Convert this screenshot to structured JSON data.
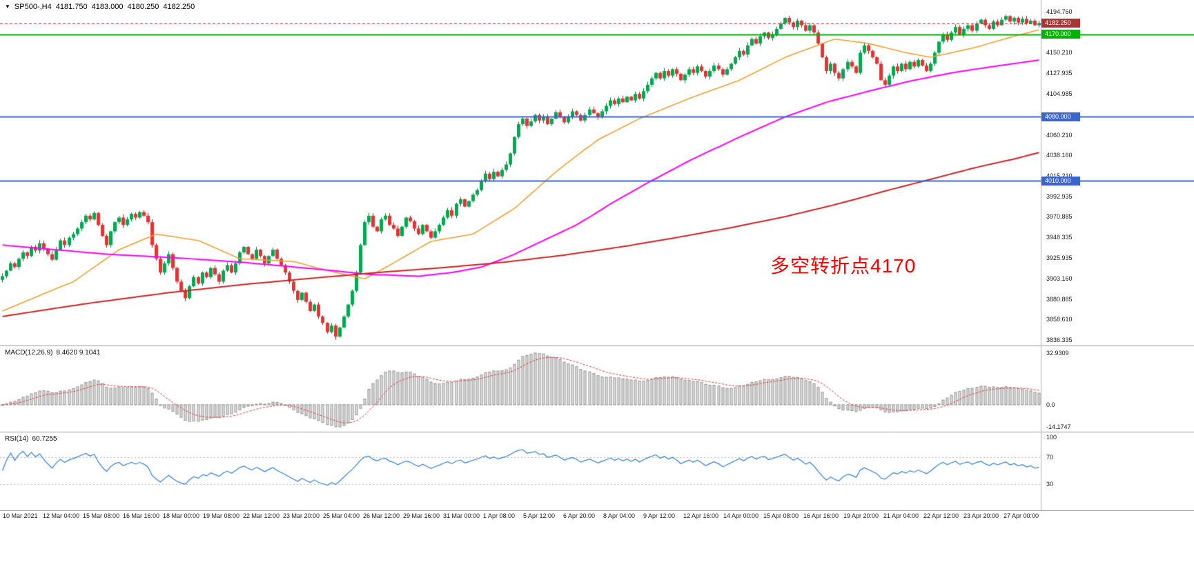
{
  "header": {
    "marker": "▼",
    "symbol": "SP500-,H4",
    "open": "4181.750",
    "high": "4183.000",
    "low": "4180.250",
    "close": "4182.250"
  },
  "chart_data": [
    {
      "type": "candlestick",
      "title": "SP500-,H4",
      "timeframe": "H4",
      "annotation": {
        "text": "多空转折点4170",
        "color": "#ff0000"
      },
      "up_color": "#00a94f",
      "up_border": "#00773a",
      "down_color": "#e23434",
      "down_border": "#9c1f1f",
      "last_price": {
        "label": "4182.250",
        "value": 4182.25,
        "color": "#a83535"
      },
      "hlines": [
        {
          "value": 4170.0,
          "label": "4170.000",
          "color": "#00b300",
          "width": 2
        },
        {
          "value": 4080.0,
          "label": "4080.000",
          "color": "#3a66cc",
          "width": 2
        },
        {
          "value": 4010.0,
          "label": "4010.000",
          "color": "#3a66cc",
          "width": 2
        }
      ],
      "y_ticks": [
        "4194.760",
        "4150.210",
        "4127.935",
        "4104.985",
        "4060.210",
        "4038.160",
        "4015.210",
        "3992.935",
        "3970.885",
        "3948.335",
        "3925.935",
        "3903.160",
        "3880.885",
        "3858.610",
        "3836.335"
      ],
      "x_labels": [
        "10 Mar 2021",
        "12 Mar 04:00",
        "15 Mar 08:00",
        "16 Mar 16:00",
        "18 Mar 00:00",
        "19 Mar 08:00",
        "22 Mar 12:00",
        "23 Mar 20:00",
        "25 Mar 04:00",
        "26 Mar 12:00",
        "29 Mar 16:00",
        "31 Mar 00:00",
        "1 Apr 08:00",
        "5 Apr 12:00",
        "6 Apr 20:00",
        "8 Apr 04:00",
        "9 Apr 12:00",
        "12 Apr 16:00",
        "14 Apr 00:00",
        "15 Apr 08:00",
        "16 Apr 16:00",
        "19 Apr 20:00",
        "21 Apr 04:00",
        "22 Apr 12:00",
        "23 Apr 20:00",
        "27 Apr 00:00"
      ],
      "closes": [
        3906,
        3912,
        3920,
        3916,
        3925,
        3932,
        3928,
        3938,
        3934,
        3942,
        3936,
        3930,
        3924,
        3935,
        3945,
        3940,
        3948,
        3952,
        3958,
        3965,
        3972,
        3968,
        3975,
        3962,
        3950,
        3940,
        3955,
        3965,
        3970,
        3962,
        3968,
        3974,
        3970,
        3976,
        3972,
        3965,
        3940,
        3925,
        3910,
        3920,
        3930,
        3915,
        3900,
        3890,
        3882,
        3895,
        3905,
        3898,
        3910,
        3905,
        3915,
        3908,
        3900,
        3912,
        3918,
        3910,
        3920,
        3932,
        3938,
        3930,
        3925,
        3935,
        3928,
        3920,
        3928,
        3935,
        3925,
        3918,
        3910,
        3900,
        3890,
        3880,
        3888,
        3878,
        3868,
        3875,
        3862,
        3855,
        3845,
        3852,
        3840,
        3850,
        3862,
        3875,
        3890,
        3910,
        3940,
        3965,
        3972,
        3960,
        3955,
        3968,
        3972,
        3962,
        3958,
        3950,
        3960,
        3970,
        3966,
        3958,
        3952,
        3962,
        3955,
        3948,
        3955,
        3962,
        3970,
        3978,
        3972,
        3985,
        3990,
        3982,
        3988,
        3995,
        4000,
        4010,
        4018,
        4012,
        4020,
        4015,
        4022,
        4028,
        4040,
        4058,
        4072,
        4078,
        4070,
        4075,
        4082,
        4076,
        4080,
        4072,
        4078,
        4085,
        4080,
        4074,
        4080,
        4086,
        4082,
        4076,
        4082,
        4088,
        4084,
        4080,
        4086,
        4092,
        4098,
        4094,
        4100,
        4096,
        4102,
        4098,
        4105,
        4100,
        4108,
        4115,
        4122,
        4128,
        4122,
        4130,
        4125,
        4132,
        4127,
        4120,
        4126,
        4132,
        4128,
        4135,
        4130,
        4124,
        4130,
        4136,
        4132,
        4126,
        4132,
        4138,
        4145,
        4152,
        4148,
        4158,
        4165,
        4160,
        4168,
        4172,
        4166,
        4170,
        4176,
        4182,
        4188,
        4183,
        4178,
        4185,
        4180,
        4174,
        4180,
        4172,
        4160,
        4145,
        4130,
        4138,
        4128,
        4122,
        4132,
        4140,
        4135,
        4128,
        4150,
        4158,
        4152,
        4145,
        4138,
        4120,
        4115,
        4125,
        4135,
        4130,
        4138,
        4132,
        4140,
        4135,
        4142,
        4136,
        4130,
        4138,
        4150,
        4162,
        4170,
        4164,
        4172,
        4178,
        4170,
        4176,
        4180,
        4174,
        4182,
        4186,
        4180,
        4176,
        4184,
        4180,
        4186,
        4190,
        4184,
        4188,
        4183,
        4187,
        4182,
        4185,
        4180,
        4182.25
      ],
      "moving_averages": [
        {
          "name": "ma-fast",
          "color": "#efa134",
          "width": 1.6,
          "points": [
            [
              0,
              3868
            ],
            [
              17,
              3900
            ],
            [
              28,
              3935
            ],
            [
              37,
              3952
            ],
            [
              47,
              3945
            ],
            [
              57,
              3925
            ],
            [
              70,
              3922
            ],
            [
              80,
              3910
            ],
            [
              87,
              3903
            ],
            [
              93,
              3918
            ],
            [
              103,
              3944
            ],
            [
              113,
              3952
            ],
            [
              123,
              3980
            ],
            [
              133,
              4020
            ],
            [
              143,
              4055
            ],
            [
              153,
              4078
            ],
            [
              165,
              4100
            ],
            [
              177,
              4120
            ],
            [
              188,
              4145
            ],
            [
              200,
              4165
            ],
            [
              208,
              4160
            ],
            [
              217,
              4150
            ],
            [
              223,
              4145
            ],
            [
              233,
              4155
            ],
            [
              243,
              4168
            ],
            [
              249,
              4175
            ]
          ]
        },
        {
          "name": "ma-mid",
          "color": "#ff00ff",
          "width": 2,
          "points": [
            [
              0,
              3940
            ],
            [
              25,
              3930
            ],
            [
              42,
              3926
            ],
            [
              58,
              3921
            ],
            [
              75,
              3914
            ],
            [
              88,
              3908
            ],
            [
              100,
              3906
            ],
            [
              108,
              3910
            ],
            [
              115,
              3916
            ],
            [
              122,
              3928
            ],
            [
              130,
              3945
            ],
            [
              138,
              3962
            ],
            [
              146,
              3985
            ],
            [
              155,
              4008
            ],
            [
              165,
              4032
            ],
            [
              177,
              4058
            ],
            [
              188,
              4080
            ],
            [
              198,
              4096
            ],
            [
              208,
              4108
            ],
            [
              218,
              4119
            ],
            [
              228,
              4128
            ],
            [
              238,
              4135
            ],
            [
              249,
              4142
            ]
          ]
        },
        {
          "name": "ma-slow",
          "color": "#cc2222",
          "width": 2,
          "points": [
            [
              0,
              3862
            ],
            [
              20,
              3876
            ],
            [
              40,
              3888
            ],
            [
              58,
              3897
            ],
            [
              75,
              3904
            ],
            [
              90,
              3910
            ],
            [
              105,
              3915
            ],
            [
              120,
              3921
            ],
            [
              135,
              3929
            ],
            [
              150,
              3939
            ],
            [
              163,
              3949
            ],
            [
              175,
              3959
            ],
            [
              188,
              3971
            ],
            [
              200,
              3984
            ],
            [
              212,
              3999
            ],
            [
              224,
              4013
            ],
            [
              235,
              4026
            ],
            [
              243,
              4034
            ],
            [
              249,
              4041
            ]
          ]
        }
      ]
    },
    {
      "type": "macd-histogram",
      "label": "MACD(12,26,9)",
      "values_label": "8.4620 9.1041",
      "params": [
        12,
        26,
        9
      ],
      "y_ticks": [
        "32.9309",
        "0.0",
        "-14.1747"
      ],
      "histogram_fill": "#e2e2e2",
      "histogram_border": "#8e8e8e",
      "signal_color": "#e03030"
    },
    {
      "type": "rsi-line",
      "label": "RSI(14)",
      "value_label": "60.7255",
      "period": 14,
      "levels": [
        70,
        30
      ],
      "y_ticks": [
        "100",
        "70",
        "30"
      ],
      "line_color": "#2f7ed8"
    }
  ]
}
